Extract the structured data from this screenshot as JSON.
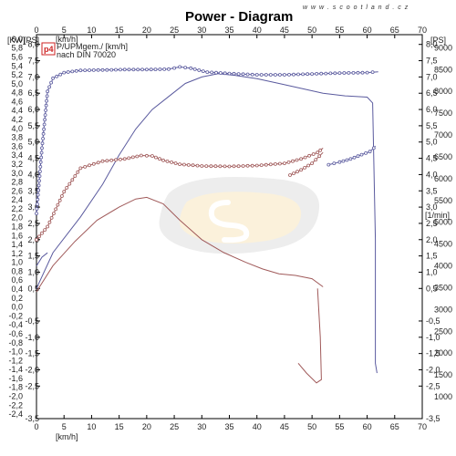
{
  "header": {
    "title": "Power - Diagram",
    "watermark": "w w w . s c o o t l a n d . c z"
  },
  "legend": {
    "badge": "p4",
    "line1": "P/UPMgem./ [km/h]",
    "line2": "nach DIN 70020"
  },
  "axes": {
    "x_unit_top": "[km/h]",
    "x_unit_bottom": "[km/h]",
    "y_unit_kw": "[KW]",
    "y_unit_ps": "[PS]",
    "y_unit_ps_right": "[PS]",
    "y_unit_rpm": "[1/min]"
  },
  "chart_data": {
    "type": "line",
    "title": "Power - Diagram",
    "x_ticks": [
      "0",
      "5",
      "10",
      "15",
      "20",
      "25",
      "30",
      "35",
      "40",
      "45",
      "50",
      "55",
      "60",
      "65",
      "70"
    ],
    "xlim": [
      0,
      70
    ],
    "kw_ticks": [
      "-2,4",
      "-2,2",
      "-2,0",
      "-1,8",
      "-1,6",
      "-1,4",
      "-1,2",
      "-1,0",
      "-0,8",
      "-0,6",
      "-0,4",
      "-0,2",
      "0,0",
      "0,2",
      "0,4",
      "0,6",
      "0,8",
      "1,0",
      "1,2",
      "1,4",
      "1,6",
      "1,8",
      "2,0",
      "2,2",
      "2,4",
      "2,6",
      "2,8",
      "3,0",
      "3,2",
      "3,4",
      "3,6",
      "3,8",
      "4,0",
      "4,2",
      "4,4",
      "4,6",
      "4,8",
      "5,0",
      "5,2",
      "5,4",
      "5,6",
      "5,8",
      "6,0"
    ],
    "kw_lim": [
      -2.5,
      6.1
    ],
    "ps_ticks": [
      "-3,5",
      "-2,5",
      "-2,0",
      "-1,5",
      "-1,0",
      "-0,5",
      "0,5",
      "1,0",
      "1,5",
      "2,0",
      "2,5",
      "3,0",
      "3,5",
      "4,0",
      "4,5",
      "5,0",
      "5,5",
      "6,0",
      "6,5",
      "7,0",
      "7,5",
      "8,0"
    ],
    "ps_right_ticks": [
      "-3,5",
      "-2,5",
      "-2,0",
      "-1,5",
      "-1,0",
      "-0,5",
      "0,5",
      "1,0",
      "1,5",
      "2,0",
      "2,5",
      "3,0",
      "3,5",
      "4,0",
      "4,5",
      "5,0",
      "5,5",
      "6,0",
      "6,5",
      "7,0",
      "7,5",
      "8,0"
    ],
    "ps_lim": [
      -3.5,
      8.3
    ],
    "rpm_ticks": [
      "1000",
      "1500",
      "2000",
      "2500",
      "3000",
      "3500",
      "4000",
      "4500",
      "5000",
      "5500",
      "6000",
      "6500",
      "7000",
      "7500",
      "8000",
      "8500",
      "9000"
    ],
    "rpm_lim": [
      500,
      9300
    ],
    "series": [
      {
        "color": "#5a5a9e",
        "axis": "ps",
        "markers": false,
        "points": [
          [
            0,
            0.5
          ],
          [
            3,
            1.6
          ],
          [
            8,
            2.7
          ],
          [
            12,
            3.7
          ],
          [
            15,
            4.6
          ],
          [
            18,
            5.4
          ],
          [
            21,
            6.0
          ],
          [
            24,
            6.4
          ],
          [
            27,
            6.8
          ],
          [
            30,
            7.0
          ],
          [
            33,
            7.1
          ],
          [
            36,
            7.05
          ],
          [
            40,
            6.95
          ],
          [
            44,
            6.8
          ],
          [
            48,
            6.65
          ],
          [
            52,
            6.5
          ],
          [
            56,
            6.42
          ],
          [
            60,
            6.38
          ],
          [
            61,
            6.2
          ],
          [
            61.5,
            2.0
          ],
          [
            61.5,
            -1.8
          ],
          [
            61.8,
            -2.1
          ]
        ]
      },
      {
        "color": "#a05a5a",
        "axis": "ps",
        "markers": false,
        "points": [
          [
            0,
            0.4
          ],
          [
            3,
            1.2
          ],
          [
            7,
            1.95
          ],
          [
            11,
            2.6
          ],
          [
            15,
            3.0
          ],
          [
            18,
            3.25
          ],
          [
            20,
            3.3
          ],
          [
            23,
            3.1
          ],
          [
            26,
            2.6
          ],
          [
            30,
            2.0
          ],
          [
            34,
            1.6
          ],
          [
            38,
            1.3
          ],
          [
            41,
            1.1
          ],
          [
            44,
            0.95
          ],
          [
            47,
            0.9
          ],
          [
            50,
            0.8
          ],
          [
            52,
            0.55
          ]
        ]
      },
      {
        "color": "#a05a5a",
        "axis": "ps",
        "markers": false,
        "points": [
          [
            51,
            0.5
          ],
          [
            51.5,
            -1.0
          ],
          [
            51.7,
            -2.3
          ],
          [
            50.8,
            -2.4
          ],
          [
            49,
            -2.1
          ],
          [
            47.5,
            -1.8
          ]
        ]
      },
      {
        "color": "#5a5a9e",
        "axis": "rpm",
        "markers": true,
        "points": [
          [
            0,
            5200
          ],
          [
            1,
            6700
          ],
          [
            2,
            8000
          ],
          [
            3,
            8300
          ],
          [
            5,
            8430
          ],
          [
            8,
            8480
          ],
          [
            12,
            8490
          ],
          [
            16,
            8500
          ],
          [
            20,
            8500
          ],
          [
            24,
            8510
          ],
          [
            26,
            8560
          ],
          [
            28,
            8530
          ],
          [
            31,
            8440
          ],
          [
            35,
            8410
          ],
          [
            40,
            8380
          ],
          [
            45,
            8380
          ],
          [
            50,
            8400
          ],
          [
            55,
            8420
          ],
          [
            60,
            8430
          ],
          [
            62,
            8450
          ]
        ]
      },
      {
        "color": "#5a5a9e",
        "axis": "rpm",
        "markers": false,
        "points": [
          [
            0,
            4000
          ],
          [
            1,
            4200
          ],
          [
            2,
            4300
          ]
        ]
      },
      {
        "color": "#5a5a9e",
        "axis": "rpm",
        "markers": true,
        "points": [
          [
            53,
            6320
          ],
          [
            55,
            6380
          ],
          [
            57,
            6450
          ],
          [
            59,
            6550
          ],
          [
            60.5,
            6620
          ],
          [
            61.2,
            6700
          ],
          [
            61.5,
            6750
          ]
        ]
      },
      {
        "color": "#a05a5a",
        "axis": "rpm",
        "markers": true,
        "points": [
          [
            0,
            4600
          ],
          [
            2,
            4900
          ],
          [
            5,
            5700
          ],
          [
            8,
            6240
          ],
          [
            12,
            6400
          ],
          [
            16,
            6450
          ],
          [
            19,
            6530
          ],
          [
            21,
            6520
          ],
          [
            23,
            6420
          ],
          [
            26,
            6330
          ],
          [
            30,
            6290
          ],
          [
            35,
            6280
          ],
          [
            40,
            6300
          ],
          [
            45,
            6350
          ],
          [
            48,
            6450
          ],
          [
            51,
            6600
          ],
          [
            52,
            6700
          ]
        ]
      },
      {
        "color": "#a05a5a",
        "axis": "rpm",
        "markers": true,
        "points": [
          [
            46,
            6080
          ],
          [
            48,
            6200
          ],
          [
            50,
            6350
          ],
          [
            52,
            6600
          ]
        ]
      }
    ]
  }
}
